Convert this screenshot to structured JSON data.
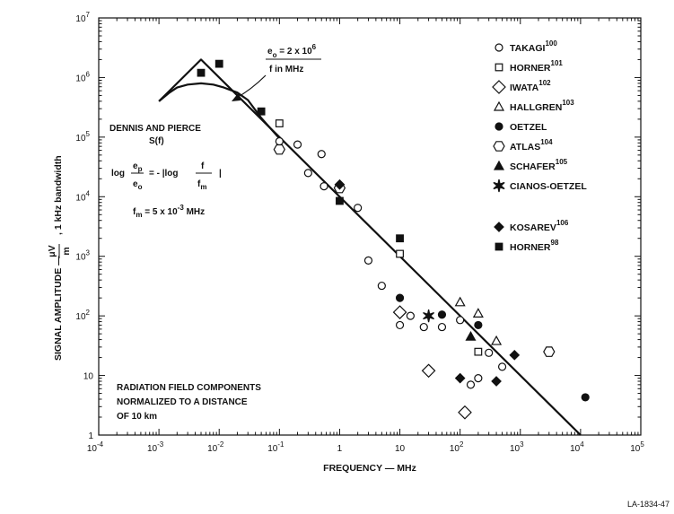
{
  "chart_data": {
    "type": "scatter",
    "xscale": "log",
    "yscale": "log",
    "xlim": [
      0.0001,
      100000
    ],
    "ylim": [
      1,
      10000000
    ],
    "x_ticks": [
      {
        "b": "10",
        "e": "-4"
      },
      {
        "b": "10",
        "e": "-3"
      },
      {
        "b": "10",
        "e": "-2"
      },
      {
        "b": "10",
        "e": "-1"
      },
      {
        "b": "1",
        "e": ""
      },
      {
        "b": "10",
        "e": ""
      },
      {
        "b": "10",
        "e": "2"
      },
      {
        "b": "10",
        "e": "3"
      },
      {
        "b": "10",
        "e": "4"
      },
      {
        "b": "10",
        "e": "5"
      }
    ],
    "y_ticks": [
      {
        "b": "1",
        "e": ""
      },
      {
        "b": "10",
        "e": ""
      },
      {
        "b": "10",
        "e": "2"
      },
      {
        "b": "10",
        "e": "3"
      },
      {
        "b": "10",
        "e": "4"
      },
      {
        "b": "10",
        "e": "5"
      },
      {
        "b": "10",
        "e": "6"
      },
      {
        "b": "10",
        "e": "7"
      }
    ],
    "xlabel": "FREQUENCY — MHz",
    "ylabel": {
      "main": "SIGNAL AMPLITUDE —",
      "unit_num": "μV",
      "unit_den": "m",
      "bandwidth": ", 1 kHz bandwidth"
    },
    "series": [
      {
        "name": "TAKAGI",
        "ref": "100",
        "marker": "circle-open",
        "points": [
          [
            0.1,
            85000
          ],
          [
            0.2,
            75000
          ],
          [
            0.3,
            25000
          ],
          [
            0.5,
            52000
          ],
          [
            0.55,
            15000
          ],
          [
            2,
            6500
          ],
          [
            3,
            850
          ],
          [
            5,
            320
          ],
          [
            10,
            70
          ],
          [
            15,
            100
          ],
          [
            25,
            65
          ],
          [
            50,
            65
          ],
          [
            100,
            85
          ],
          [
            150,
            7
          ],
          [
            200,
            9
          ],
          [
            300,
            24
          ],
          [
            500,
            14
          ]
        ]
      },
      {
        "name": "HORNER",
        "ref": "101",
        "marker": "square-open",
        "points": [
          [
            0.1,
            170000
          ],
          [
            10,
            1100
          ],
          [
            200,
            25
          ]
        ]
      },
      {
        "name": "IWATA",
        "ref": "102",
        "marker": "diamond-open",
        "points": [
          [
            10,
            115
          ],
          [
            30,
            12
          ],
          [
            120,
            2.4
          ]
        ]
      },
      {
        "name": "HALLGREN",
        "ref": "103",
        "marker": "triangle-open",
        "points": [
          [
            100,
            170
          ],
          [
            200,
            110
          ],
          [
            400,
            38
          ]
        ]
      },
      {
        "name": "OETZEL",
        "ref": "",
        "marker": "circle-filled",
        "points": [
          [
            10,
            200
          ],
          [
            50,
            105
          ],
          [
            200,
            70
          ],
          [
            12000,
            4.3
          ]
        ]
      },
      {
        "name": "ATLAS",
        "ref": "104",
        "marker": "hexagon-open",
        "points": [
          [
            0.1,
            62000
          ],
          [
            1,
            14000
          ],
          [
            3000,
            25
          ]
        ]
      },
      {
        "name": "SCHAFER",
        "ref": "105",
        "marker": "triangle-filled",
        "points": [
          [
            150,
            45
          ]
        ]
      },
      {
        "name": "CIANOS-OETZEL",
        "ref": "",
        "marker": "star",
        "points": [
          [
            30,
            100
          ]
        ]
      },
      {
        "name": "KOSAREV",
        "ref": "106",
        "marker": "diamond-filled",
        "points": [
          [
            1,
            16000
          ],
          [
            100,
            9
          ],
          [
            400,
            8
          ],
          [
            800,
            22
          ]
        ]
      },
      {
        "name": "HORNER",
        "ref": "98",
        "marker": "square-filled",
        "points": [
          [
            0.005,
            1200000
          ],
          [
            0.01,
            1700000
          ],
          [
            0.05,
            270000
          ],
          [
            1,
            8500
          ],
          [
            10,
            2000
          ]
        ]
      }
    ],
    "curves": [
      {
        "name": "e_o = 2 x 10^6 / f in MHz",
        "points": [
          [
            0.001,
            400000
          ],
          [
            0.005,
            2000000
          ],
          [
            10000,
            1
          ]
        ]
      },
      {
        "name": "DENNIS AND PIERCE S(f)",
        "points": [
          [
            0.001,
            400000
          ],
          [
            0.0015,
            560000
          ],
          [
            0.002,
            680000
          ],
          [
            0.003,
            760000
          ],
          [
            0.005,
            800000
          ],
          [
            0.008,
            760000
          ],
          [
            0.012,
            680000
          ],
          [
            0.02,
            560000
          ],
          [
            0.03,
            420000
          ],
          [
            0.05,
            210000
          ],
          [
            0.1,
            95000
          ]
        ]
      }
    ],
    "annotations": {
      "formula_top": {
        "pre": "e",
        "pre_sub": "o",
        "eq": " = 2 x 10",
        "exp": "6"
      },
      "formula_top_line2": "f in MHz",
      "dennis_line1": "DENNIS AND PIERCE",
      "dennis_line2": "S(f)",
      "log_formula": {
        "log1": "log",
        "num": "e",
        "num_sub": "p",
        "den": "e",
        "den_sub": "o",
        "eq": "= - |log",
        "f_num": "f",
        "f_den": "f",
        "f_den_sub": "m",
        "bar": "|"
      },
      "fm_formula": {
        "pre": "f",
        "pre_sub": "m",
        "eq": " = 5 x 10",
        "exp": "-3",
        "post": " MHz"
      },
      "radiation_lines": [
        "RADIATION FIELD COMPONENTS",
        "NORMALIZED TO A DISTANCE",
        "OF 10 km"
      ]
    },
    "figure_id": "LA-1834-47"
  }
}
